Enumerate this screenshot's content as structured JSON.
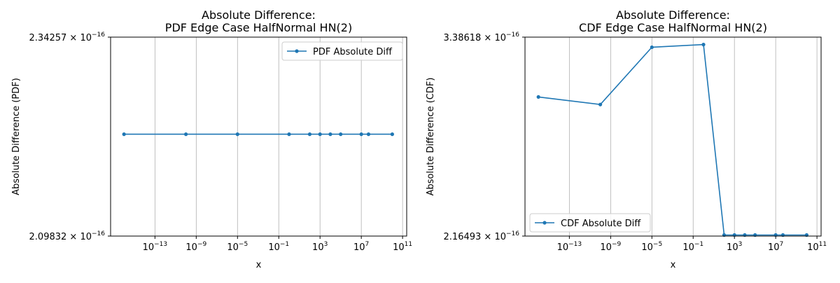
{
  "chart_data": [
    {
      "type": "line",
      "title_line1": "Absolute Difference:",
      "title_line2": "PDF Edge Case HalfNormal HN(2)",
      "xlabel": "x",
      "ylabel": "Absolute Difference (PDF)",
      "xscale": "log",
      "yscale": "log",
      "grid": "x-major",
      "legend_position": "upper right",
      "color": "#1f77b4",
      "x_ticks": [
        {
          "exp": 13,
          "mant": "10",
          "sup": "−13"
        },
        {
          "exp": 9,
          "mant": "10",
          "sup": "−9"
        },
        {
          "exp": 5,
          "mant": "10",
          "sup": "−5"
        },
        {
          "exp": 1,
          "mant": "10",
          "sup": "−1"
        },
        {
          "exp": 3,
          "mant": "10",
          "sup": "3"
        },
        {
          "exp": 7,
          "mant": "10",
          "sup": "7"
        },
        {
          "exp": 11,
          "mant": "10",
          "sup": "11"
        }
      ],
      "y_ticks": [
        {
          "value": 2.34257e-16,
          "mant": "2.34257 × 10",
          "sup": "−16"
        },
        {
          "value": 2.09832e-16,
          "mant": "2.09832 × 10",
          "sup": "−16"
        }
      ],
      "series": [
        {
          "name": "PDF Absolute Diff",
          "x": [
            1e-16,
            1e-10,
            1e-05,
            1,
            100,
            1000,
            10000,
            100000,
            10000000,
            50000000,
            10000000000
          ],
          "y": [
            2.22e-16,
            2.22e-16,
            2.22e-16,
            2.22e-16,
            2.22e-16,
            2.22e-16,
            2.22e-16,
            2.22e-16,
            2.22e-16,
            2.22e-16,
            2.22e-16
          ]
        }
      ]
    },
    {
      "type": "line",
      "title_line1": "Absolute Difference:",
      "title_line2": "CDF Edge Case HalfNormal HN(2)",
      "xlabel": "x",
      "ylabel": "Absolute Difference (CDF)",
      "xscale": "log",
      "yscale": "log",
      "grid": "x-major",
      "legend_position": "lower left",
      "color": "#1f77b4",
      "x_ticks": [
        {
          "exp": 13,
          "mant": "10",
          "sup": "−13"
        },
        {
          "exp": 9,
          "mant": "10",
          "sup": "−9"
        },
        {
          "exp": 5,
          "mant": "10",
          "sup": "−5"
        },
        {
          "exp": 1,
          "mant": "10",
          "sup": "−1"
        },
        {
          "exp": 3,
          "mant": "10",
          "sup": "3"
        },
        {
          "exp": 7,
          "mant": "10",
          "sup": "7"
        },
        {
          "exp": 11,
          "mant": "10",
          "sup": "11"
        }
      ],
      "y_ticks": [
        {
          "value": 3.38618e-16,
          "mant": "3.38618 × 10",
          "sup": "−16"
        },
        {
          "value": 2.16493e-16,
          "mant": "2.16493 × 10",
          "sup": "−16"
        }
      ],
      "series": [
        {
          "name": "CDF Absolute Diff",
          "x": [
            1e-16,
            1e-10,
            1e-05,
            1,
            100,
            1000,
            10000,
            100000,
            10000000,
            50000000,
            10000000000
          ],
          "y": [
            2.96e-16,
            2.91e-16,
            3.31e-16,
            3.33e-16,
            2.17e-16,
            2.17e-16,
            2.17e-16,
            2.17e-16,
            2.17e-16,
            2.17e-16,
            2.17e-16
          ]
        }
      ]
    }
  ]
}
